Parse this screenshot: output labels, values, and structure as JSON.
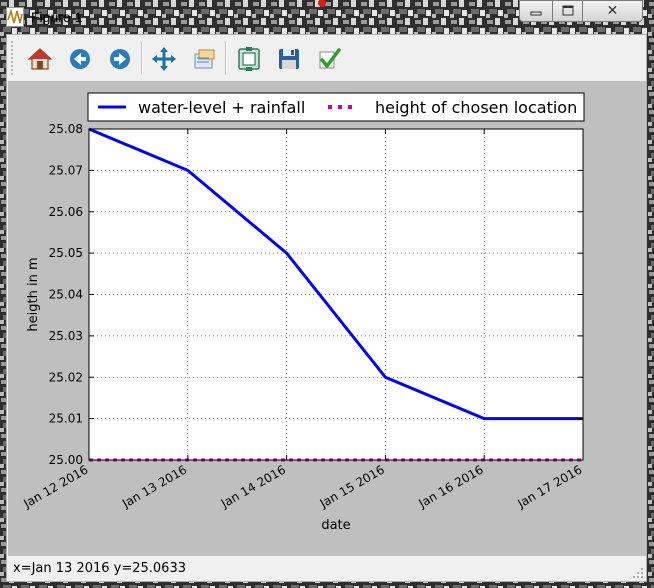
{
  "window": {
    "title": "Figure 1"
  },
  "titlebar_buttons": {
    "minimize_icon": "minimize-icon",
    "maximize_icon": "maximize-icon",
    "close_glyph": "✕"
  },
  "toolbar": {
    "items": [
      {
        "name": "home-icon",
        "color": "#c0392b"
      },
      {
        "name": "back-icon",
        "color": "#2b7bbd"
      },
      {
        "name": "forward-icon",
        "color": "#2b7bbd"
      },
      {
        "name": "pan-icon",
        "color": "#1f6fa8"
      },
      {
        "name": "zoom-icon",
        "color": "#3a8fc8"
      },
      {
        "name": "subplots-icon",
        "color": "#2f7a5a"
      },
      {
        "name": "save-icon",
        "color": "#2b5f9a"
      },
      {
        "name": "edit-check-icon",
        "color": "#2ca02c"
      }
    ]
  },
  "status": {
    "text": "x=Jan 13 2016 y=25.0633"
  },
  "chart_data": {
    "type": "line",
    "xlabel": "date",
    "ylabel": "heigth in m",
    "x": [
      "Jan 12 2016",
      "Jan 13 2016",
      "Jan 14 2016",
      "Jan 15 2016",
      "Jan 16 2016",
      "Jan 17 2016"
    ],
    "ylim": [
      25.0,
      25.08
    ],
    "yticks": [
      "25.00",
      "25.01",
      "25.02",
      "25.03",
      "25.04",
      "25.05",
      "25.06",
      "25.07",
      "25.08"
    ],
    "grid": true,
    "legend_position": "top",
    "series": [
      {
        "name": "water-level + rainfall",
        "color": "#0000ff",
        "style": "solid",
        "values": [
          25.08,
          25.07,
          25.05,
          25.02,
          25.01,
          25.01
        ]
      },
      {
        "name": "height of chosen location",
        "color": "#bf00bf",
        "style": "dotted",
        "values": [
          25.0,
          25.0,
          25.0,
          25.0,
          25.0,
          25.0
        ]
      }
    ]
  }
}
